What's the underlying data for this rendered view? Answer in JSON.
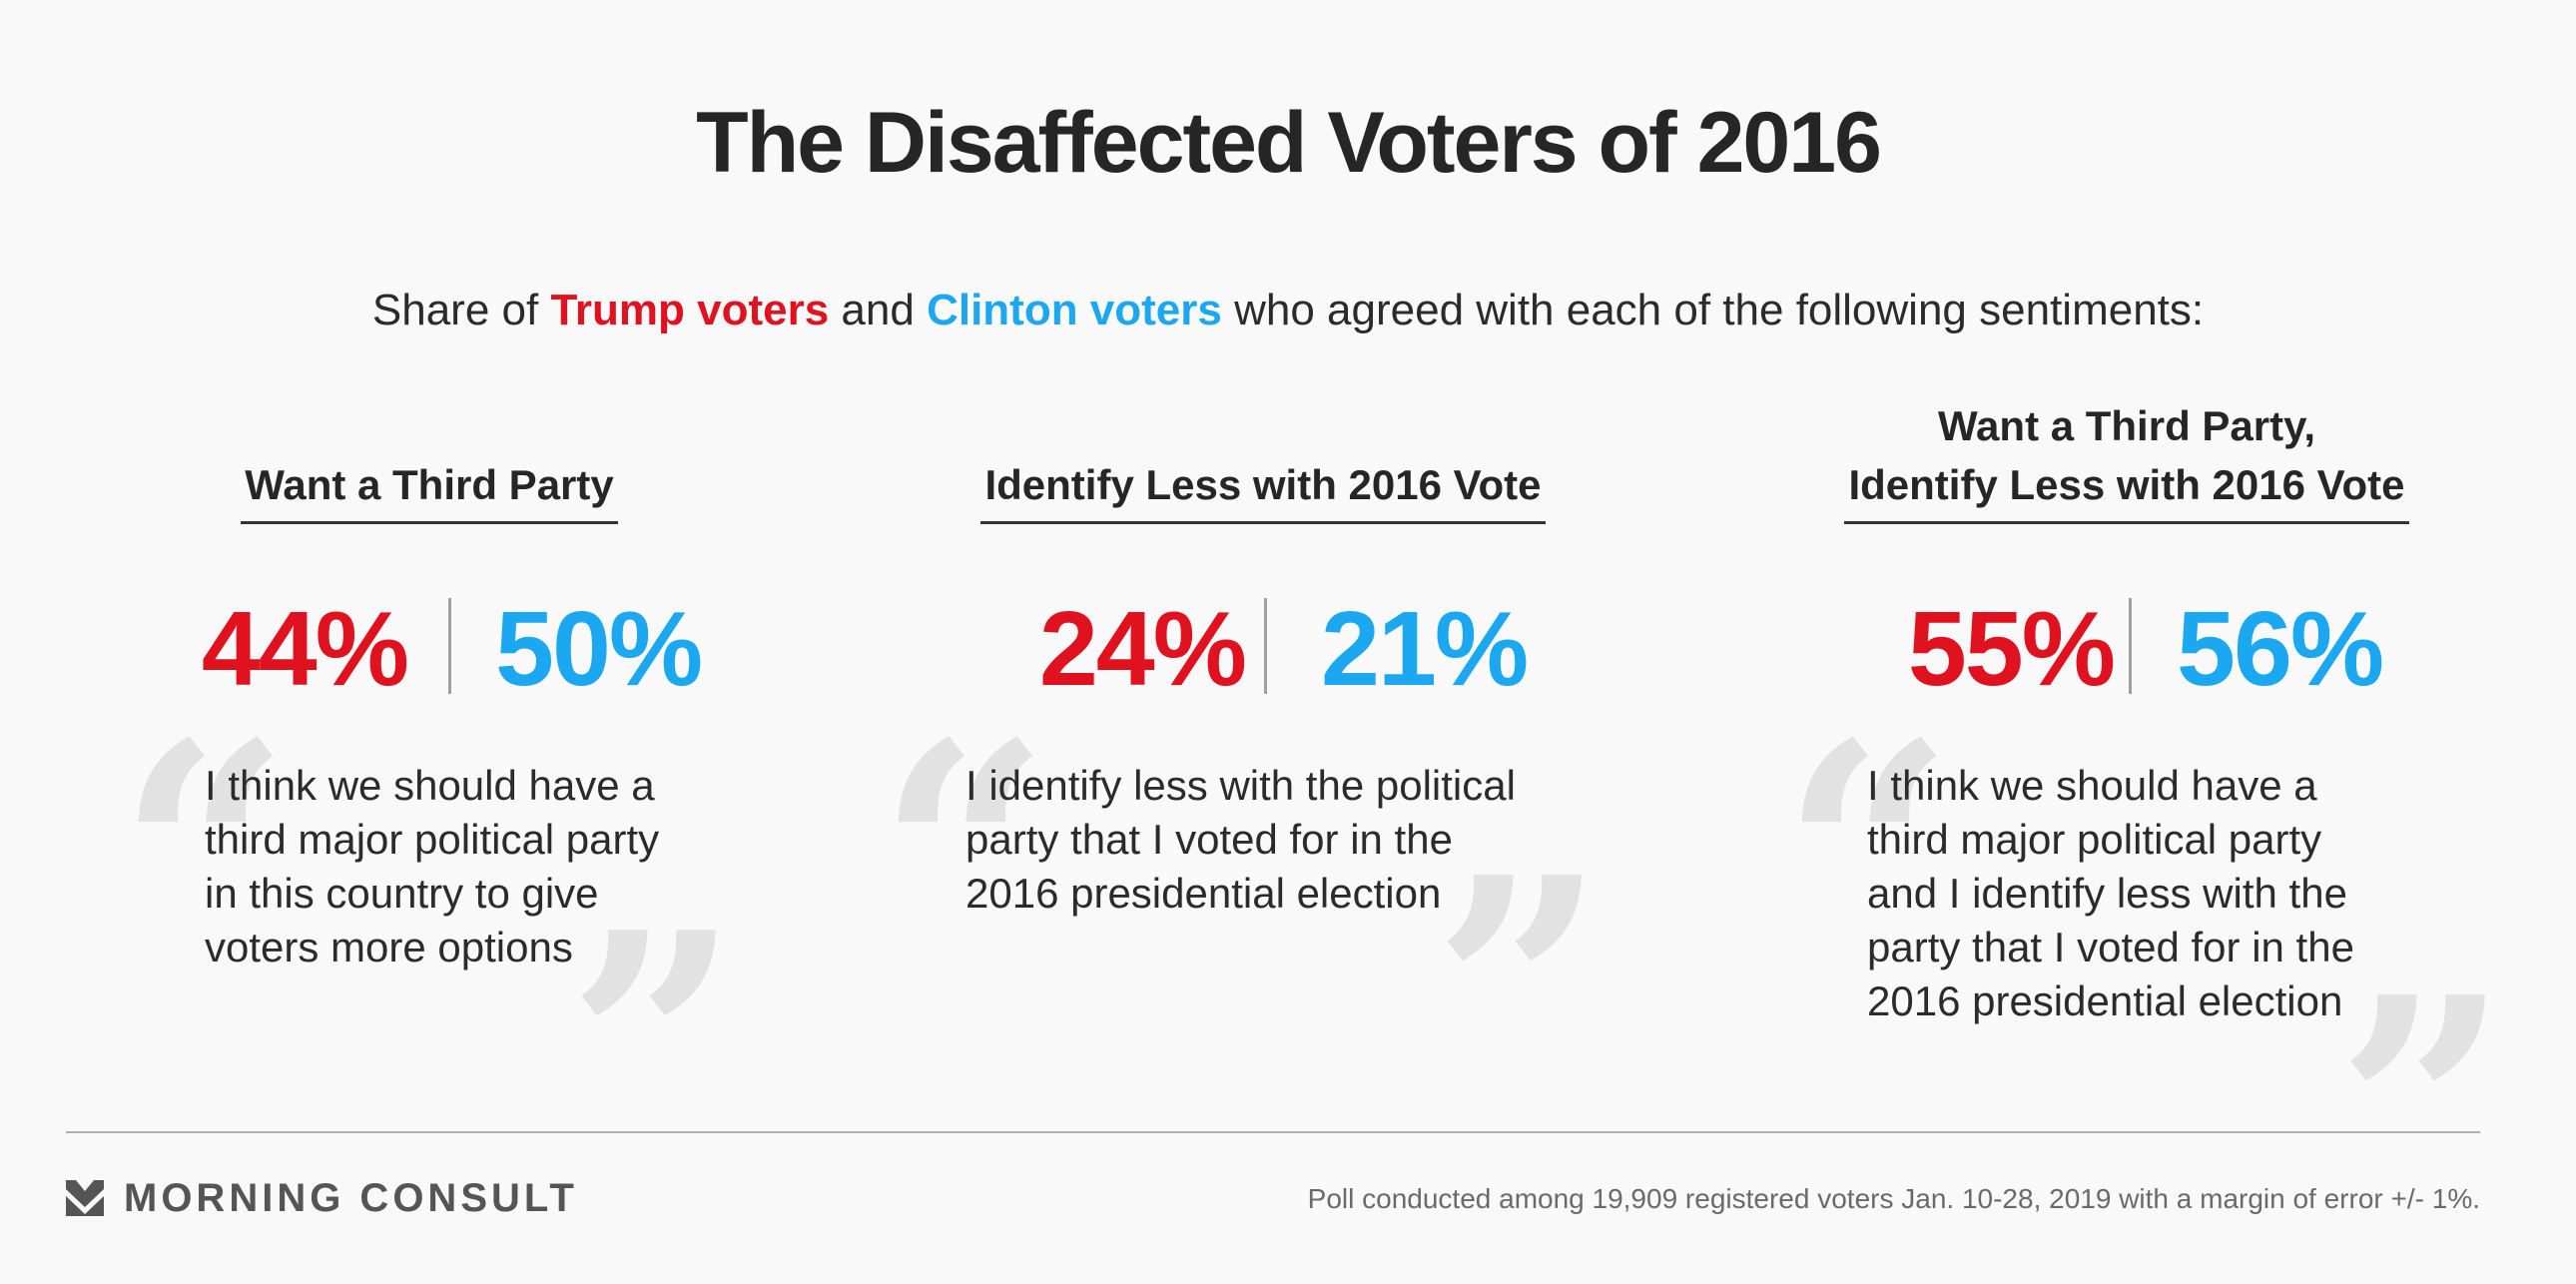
{
  "title": "The Disaffected Voters of 2016",
  "subtitle": {
    "prefix": "Share of ",
    "trump_label": "Trump voters",
    "middle": " and ",
    "clinton_label": "Clinton voters",
    "suffix": " who agreed with each of the following sentiments:"
  },
  "colors": {
    "trump": "#e0121f",
    "clinton": "#1ca8f0"
  },
  "chart_data": {
    "type": "table",
    "series": [
      {
        "name": "Trump voters",
        "values": [
          44,
          24,
          55
        ]
      },
      {
        "name": "Clinton voters",
        "values": [
          50,
          21,
          56
        ]
      }
    ],
    "categories": [
      "Want a Third Party",
      "Identify Less with 2016 Vote",
      "Want a Third Party, Identify Less with 2016 Vote"
    ],
    "panels": [
      {
        "heading_lines": [
          "Want a Third Party"
        ],
        "trump_pct": "44%",
        "clinton_pct": "50%",
        "quote_lines": [
          "I think we should have a",
          "third major political party",
          "in this country to give",
          "voters more options"
        ]
      },
      {
        "heading_lines": [
          "Identify Less with 2016 Vote"
        ],
        "trump_pct": "24%",
        "clinton_pct": "21%",
        "quote_lines": [
          "I identify less with the political",
          "party that I voted for in the",
          "2016 presidential election"
        ]
      },
      {
        "heading_lines": [
          "Want a Third Party,",
          "Identify Less with 2016 Vote"
        ],
        "trump_pct": "55%",
        "clinton_pct": "56%",
        "quote_lines": [
          "I think we should have a",
          "third major political party",
          "and I identify less with the",
          "party that I voted for in the",
          "2016 presidential election"
        ]
      }
    ]
  },
  "footer": {
    "brand": "MORNING CONSULT",
    "brand_icon": "morning-consult-logo-icon",
    "note": "Poll conducted among 19,909 registered voters Jan. 10-28, 2019 with a margin of error +/- 1%."
  }
}
